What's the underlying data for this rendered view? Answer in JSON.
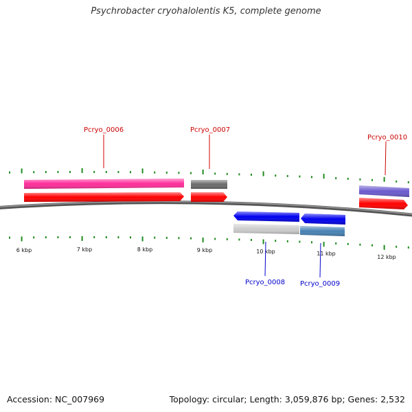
{
  "title": "Psychrobacter cryohalolentis K5, complete genome",
  "accession": "Accession: NC_007969",
  "summary": "Topology: circular; Length: 3,059,876 bp; Genes: 2,532",
  "colors": {
    "backbone": "#6e6e6e",
    "tick": "#1e8a1e",
    "label_top": "#cc0000",
    "label_bottom": "#0000cc",
    "red": "#ff0000",
    "pink": "#ff2d9a",
    "gray": "#6a6a6a",
    "purple": "#6a5acd",
    "blue": "#0000ee",
    "lightgray": "#cccccc",
    "steel": "#4682b4"
  },
  "kbp_labels": [
    "6 kbp",
    "7 kbp",
    "8 kbp",
    "9 kbp",
    "10 kbp",
    "11 kbp",
    "12 kbp"
  ],
  "genes": [
    {
      "name": "Pcryo_0006",
      "strand": "+",
      "label_color": "label_top"
    },
    {
      "name": "Pcryo_0007",
      "strand": "+",
      "label_color": "label_top"
    },
    {
      "name": "Pcryo_0008",
      "strand": "-",
      "label_color": "label_bottom"
    },
    {
      "name": "Pcryo_0009",
      "strand": "-",
      "label_color": "label_bottom"
    },
    {
      "name": "Pcryo_0010",
      "strand": "+",
      "label_color": "label_top"
    }
  ]
}
